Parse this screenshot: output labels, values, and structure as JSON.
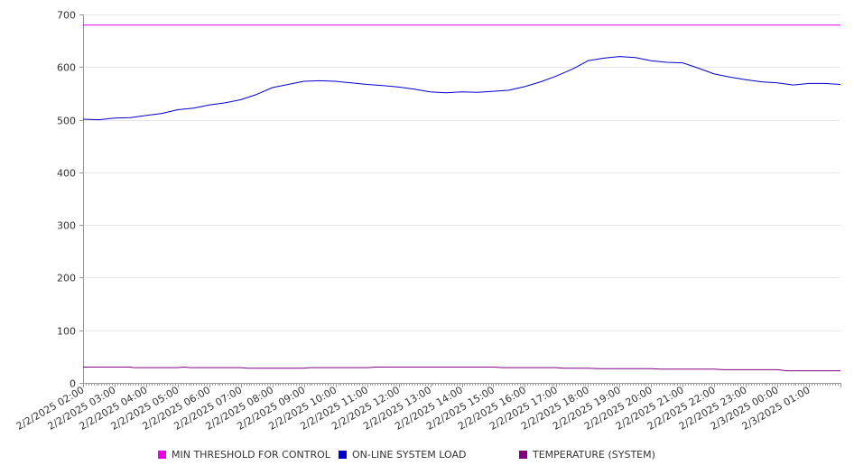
{
  "chart_data": {
    "type": "line",
    "ylim": [
      0,
      700
    ],
    "yticks": [
      "0",
      "100",
      "200",
      "300",
      "400",
      "500",
      "600",
      "700"
    ],
    "xrange": [
      0,
      24
    ],
    "xticks": [
      "2/2/2025 02:00",
      "2/2/2025 03:00",
      "2/2/2025 04:00",
      "2/2/2025 05:00",
      "2/2/2025 06:00",
      "2/2/2025 07:00",
      "2/2/2025 08:00",
      "2/2/2025 09:00",
      "2/2/2025 10:00",
      "2/2/2025 11:00",
      "2/2/2025 12:00",
      "2/2/2025 13:00",
      "2/2/2025 14:00",
      "2/2/2025 15:00",
      "2/2/2025 16:00",
      "2/2/2025 17:00",
      "2/2/2025 18:00",
      "2/2/2025 19:00",
      "2/2/2025 20:00",
      "2/2/2025 21:00",
      "2/2/2025 22:00",
      "2/2/2025 23:00",
      "2/3/2025 00:00",
      "2/3/2025 01:00"
    ],
    "grid": true,
    "legend_position": "bottom",
    "series": [
      {
        "name": "MIN THRESHOLD FOR CONTROL",
        "color": "#e600e6",
        "x": [
          0,
          24
        ],
        "values": [
          680,
          680
        ]
      },
      {
        "name": "ON-LINE SYSTEM LOAD",
        "color": "#0000cc",
        "x": [
          0,
          0.5,
          1,
          1.5,
          2,
          2.5,
          3,
          3.5,
          4,
          4.5,
          5,
          5.5,
          6,
          6.5,
          7,
          7.5,
          8,
          8.5,
          9,
          9.5,
          10,
          10.5,
          11,
          11.5,
          12,
          12.5,
          13,
          13.5,
          14,
          14.5,
          15,
          15.5,
          16,
          16.5,
          17,
          17.5,
          18,
          18.5,
          19,
          19.5,
          20,
          20.5,
          21,
          21.5,
          22,
          22.5,
          23,
          23.5,
          24
        ],
        "values": [
          501,
          500,
          503,
          504,
          508,
          512,
          519,
          522,
          528,
          532,
          538,
          548,
          561,
          567,
          573,
          574,
          573,
          570,
          567,
          565,
          562,
          558,
          553,
          551,
          553,
          552,
          554,
          556,
          563,
          572,
          583,
          596,
          612,
          617,
          620,
          618,
          612,
          609,
          608,
          598,
          587,
          581,
          576,
          572,
          570,
          566,
          569,
          569,
          567
        ]
      },
      {
        "name": "TEMPERATURE (SYSTEM)",
        "color": "#800080",
        "x": [
          0,
          1.5,
          1.6,
          3,
          3.2,
          3.4,
          5,
          5.2,
          7,
          7.2,
          9,
          9.3,
          13,
          13.3,
          15,
          15.2,
          16,
          16.3,
          18,
          18.3,
          20,
          20.3,
          22,
          22.3,
          24
        ],
        "values": [
          30,
          30,
          29,
          29,
          30,
          29,
          29,
          28,
          28,
          29,
          29,
          30,
          30,
          29,
          29,
          28,
          28,
          27,
          27,
          26,
          26,
          25,
          25,
          23,
          23
        ]
      }
    ]
  }
}
